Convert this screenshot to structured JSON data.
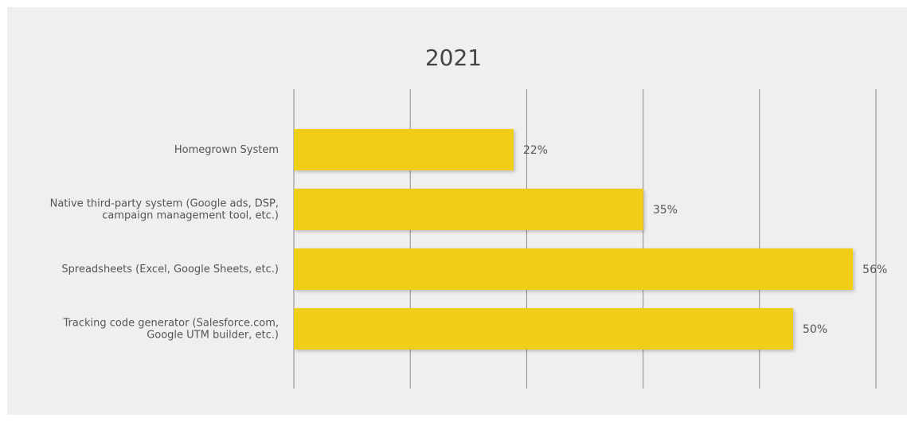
{
  "chart_data": {
    "type": "bar",
    "orientation": "horizontal",
    "title": "2021",
    "categories": [
      [
        "Homegrown System"
      ],
      [
        "Native third-party system (Google ads, DSP,",
        "campaign management tool, etc.)"
      ],
      [
        "Spreadsheets (Excel, Google Sheets, etc.)"
      ],
      [
        "Tracking code generator (Salesforce.com,",
        "Google UTM builder, etc.)"
      ]
    ],
    "values": [
      22,
      35,
      56,
      50
    ],
    "value_labels": [
      "22%",
      "35%",
      "56%",
      "50%"
    ],
    "xlim": [
      0,
      58.3
    ],
    "grid": true,
    "bar_color": "#f0cd16",
    "grid_color": "#8a8a8a"
  }
}
